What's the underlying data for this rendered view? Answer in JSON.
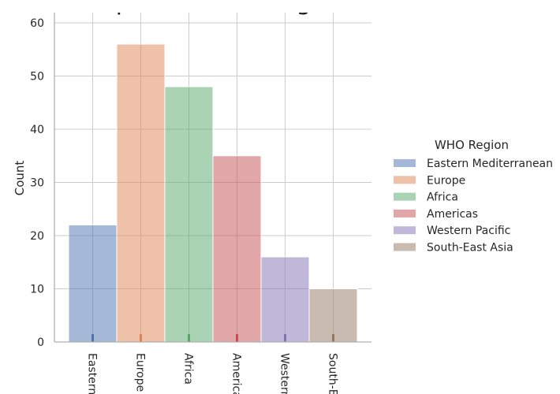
{
  "chart_data": {
    "type": "bar",
    "title": "Displot of WHO Region",
    "xlabel": "",
    "ylabel": "Count",
    "ylim": [
      0,
      62
    ],
    "yticks": [
      0,
      10,
      20,
      30,
      40,
      50,
      60
    ],
    "grid": true,
    "legend_title": "WHO Region",
    "legend_position": "right",
    "categories": [
      "Eastern",
      "Europe",
      "Africa",
      "America",
      "Western",
      "South-E"
    ],
    "series": [
      {
        "name": "Eastern Mediterranean",
        "color": "#4c72b0",
        "values": [
          22,
          0,
          0,
          0,
          0,
          0
        ]
      },
      {
        "name": "Europe",
        "color": "#dd8452",
        "values": [
          0,
          56,
          0,
          0,
          0,
          0
        ]
      },
      {
        "name": "Africa",
        "color": "#55a868",
        "values": [
          0,
          0,
          48,
          0,
          0,
          0
        ]
      },
      {
        "name": "Americas",
        "color": "#c44e52",
        "values": [
          0,
          0,
          0,
          35,
          0,
          0
        ]
      },
      {
        "name": "Western Pacific",
        "color": "#8172b3",
        "values": [
          0,
          0,
          0,
          0,
          16,
          0
        ]
      },
      {
        "name": "South-East Asia",
        "color": "#937860",
        "values": [
          0,
          0,
          0,
          0,
          0,
          10
        ]
      }
    ]
  }
}
